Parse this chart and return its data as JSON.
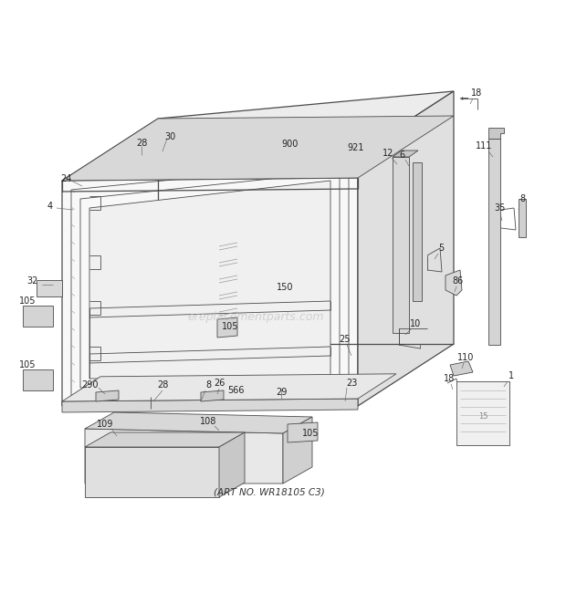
{
  "bg_color": "#ffffff",
  "line_color": "#4a4a4a",
  "label_color": "#222222",
  "watermark": "ereplacementparts.com",
  "art_no": "(ART NO. WR18105 C3)",
  "figsize": [
    6.2,
    6.61
  ],
  "dpi": 100
}
